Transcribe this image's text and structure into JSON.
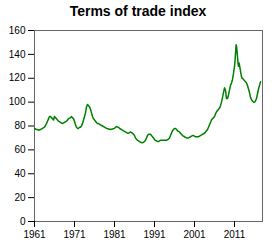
{
  "chart_data": {
    "type": "line",
    "title": "Terms of trade index",
    "color": "#008000",
    "xlim": [
      1961,
      2018
    ],
    "ylim": [
      0,
      160
    ],
    "xticks": [
      1961,
      1971,
      1981,
      1991,
      2001,
      2011
    ],
    "yticks": [
      0,
      20,
      40,
      60,
      80,
      100,
      120,
      140,
      160
    ],
    "x": [
      1961.0,
      1961.25,
      1961.5,
      1961.75,
      1962.0,
      1962.5,
      1963.0,
      1963.5,
      1964.0,
      1964.25,
      1964.5,
      1964.75,
      1965.0,
      1965.25,
      1965.5,
      1965.75,
      1966.0,
      1966.25,
      1966.5,
      1966.75,
      1967.0,
      1967.5,
      1968.0,
      1968.5,
      1969.0,
      1969.5,
      1970.0,
      1970.25,
      1970.5,
      1970.75,
      1971.0,
      1971.25,
      1971.5,
      1971.75,
      1972.0,
      1972.25,
      1972.5,
      1972.75,
      1973.0,
      1973.25,
      1973.5,
      1973.75,
      1974.0,
      1974.25,
      1974.5,
      1974.75,
      1975.0,
      1975.25,
      1975.5,
      1975.75,
      1976.0,
      1976.25,
      1976.5,
      1976.75,
      1977.0,
      1977.5,
      1978.0,
      1978.5,
      1979.0,
      1979.5,
      1980.0,
      1980.5,
      1981.0,
      1981.25,
      1981.5,
      1981.75,
      1982.0,
      1982.25,
      1982.5,
      1982.75,
      1983.0,
      1983.25,
      1983.5,
      1983.75,
      1984.0,
      1984.25,
      1984.5,
      1984.75,
      1985.0,
      1985.25,
      1985.5,
      1985.75,
      1986.0,
      1986.25,
      1986.5,
      1986.75,
      1987.0,
      1987.25,
      1987.5,
      1987.75,
      1988.0,
      1988.25,
      1988.5,
      1988.75,
      1989.0,
      1989.25,
      1989.5,
      1989.75,
      1990.0,
      1990.25,
      1990.5,
      1990.75,
      1991.0,
      1991.25,
      1991.5,
      1991.75,
      1992.0,
      1992.25,
      1992.5,
      1992.75,
      1993.0,
      1993.25,
      1993.5,
      1993.75,
      1994.0,
      1994.25,
      1994.5,
      1994.75,
      1995.0,
      1995.25,
      1995.5,
      1995.75,
      1996.0,
      1996.25,
      1996.5,
      1996.75,
      1997.0,
      1997.25,
      1997.5,
      1997.75,
      1998.0,
      1998.25,
      1998.5,
      1998.75,
      1999.0,
      1999.25,
      1999.5,
      1999.75,
      2000.0,
      2000.25,
      2000.5,
      2000.75,
      2001.0,
      2001.25,
      2001.5,
      2001.75,
      2002.0,
      2002.25,
      2002.5,
      2002.75,
      2003.0,
      2003.25,
      2003.5,
      2003.75,
      2004.0,
      2004.25,
      2004.5,
      2004.75,
      2005.0,
      2005.25,
      2005.5,
      2005.75,
      2006.0,
      2006.25,
      2006.5,
      2006.75,
      2007.0,
      2007.25,
      2007.5,
      2007.75,
      2008.0,
      2008.25,
      2008.5,
      2008.75,
      2009.0,
      2009.25,
      2009.5,
      2009.75,
      2010.0,
      2010.25,
      2010.5,
      2010.75,
      2011.0,
      2011.1,
      2011.2,
      2011.3,
      2011.4,
      2011.5,
      2011.6,
      2011.7,
      2011.8,
      2011.9,
      2012.0,
      2012.1,
      2012.2,
      2012.3,
      2012.4,
      2012.5,
      2012.6,
      2012.7,
      2012.8,
      2012.9,
      2013.0,
      2013.25,
      2013.5,
      2013.75,
      2014.0,
      2014.25,
      2014.5,
      2014.75,
      2015.0,
      2015.25,
      2015.5,
      2015.75,
      2016.0,
      2016.25,
      2016.5,
      2016.75,
      2017.0,
      2017.25,
      2017.5
    ],
    "values": [
      78,
      77.5,
      77,
      77,
      76.5,
      77,
      78,
      79,
      82,
      84,
      86,
      88,
      88,
      87,
      86,
      85,
      88,
      87,
      86,
      85,
      84,
      83,
      82,
      83,
      84,
      86,
      87,
      88,
      87,
      86,
      84,
      81,
      79,
      78,
      78,
      79,
      79,
      80,
      82,
      85,
      88,
      91,
      96,
      98,
      97,
      96,
      94,
      91,
      88,
      86,
      85,
      84,
      83,
      82,
      82,
      81,
      80,
      79,
      78,
      77.5,
      77,
      77.5,
      78,
      79,
      79.5,
      79,
      79,
      78,
      77.5,
      77,
      76.5,
      76,
      75.5,
      75,
      74.5,
      74,
      74,
      74.5,
      75,
      74.5,
      74,
      73,
      72,
      70,
      69,
      68,
      67.5,
      67,
      66.5,
      66,
      66,
      66.5,
      67,
      68,
      70,
      72,
      73,
      73,
      73,
      72,
      71,
      70,
      68.5,
      68,
      67.5,
      67,
      67,
      67.5,
      68,
      68,
      68,
      68,
      68,
      68,
      68,
      68.5,
      69,
      70,
      72,
      74,
      76,
      77,
      78,
      78,
      77,
      76,
      75.5,
      75,
      74,
      73,
      72,
      71.5,
      71,
      70.5,
      70,
      70,
      70,
      70.5,
      71,
      71.5,
      72,
      72,
      71.5,
      71,
      71,
      71,
      71,
      71.5,
      72,
      72.5,
      73,
      73.5,
      74,
      75,
      76,
      77,
      79,
      81,
      83,
      85,
      86,
      87,
      88,
      90,
      92,
      93,
      94,
      95,
      97,
      100,
      104,
      108,
      112,
      110,
      103,
      103,
      106,
      110,
      114,
      116,
      119,
      124,
      130,
      133,
      138,
      143,
      148,
      147,
      144,
      140,
      136,
      132,
      130,
      133,
      132,
      130,
      128,
      126,
      124,
      122,
      121,
      120,
      120,
      119,
      118,
      117,
      116,
      114,
      111,
      108,
      104,
      102,
      101,
      100,
      100,
      101,
      103,
      107,
      111,
      114,
      117
    ]
  }
}
